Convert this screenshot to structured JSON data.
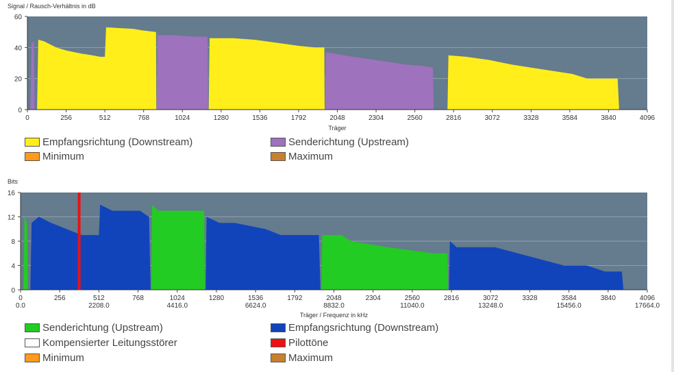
{
  "colors": {
    "plot_bg": "#657b8e",
    "grid": "#8fa0ae",
    "downstream_snr": "#ffee1a",
    "upstream_snr": "#9e72bd",
    "minimum": "#ff9a1a",
    "maximum": "#c8802e",
    "upstream_bits": "#22cc22",
    "downstream_bits": "#1144bb",
    "compensated": "#ffffff",
    "pilot": "#ee1111"
  },
  "chart_data": [
    {
      "type": "area",
      "title": "",
      "ylabel": "Signal / Rausch-Verhältnis in dB",
      "xlabel": "Träger",
      "xlim": [
        0,
        4096
      ],
      "ylim": [
        0,
        60
      ],
      "yticks": [
        "0",
        "20",
        "40",
        "60"
      ],
      "xticks": [
        "0",
        "256",
        "512",
        "768",
        "1024",
        "1280",
        "1536",
        "1792",
        "2048",
        "2304",
        "2560",
        "2816",
        "3072",
        "3328",
        "3584",
        "3840",
        "4096"
      ],
      "grid": true,
      "legend_position": "bottom",
      "legend": [
        "Empfangsrichtung (Downstream)",
        "Senderichtung (Upstream)",
        "Minimum",
        "Maximum"
      ],
      "series": [
        {
          "name": "Senderichtung (Upstream)",
          "segments": [
            [
              [
                20,
                0
              ],
              [
                28,
                43
              ],
              [
                42,
                44
              ],
              [
                48,
                0
              ]
            ],
            [
              [
                854,
                0
              ],
              [
                860,
                48
              ],
              [
                950,
                48
              ],
              [
                1100,
                47
              ],
              [
                1190,
                47
              ],
              [
                1195,
                0
              ]
            ],
            [
              [
                1966,
                0
              ],
              [
                1972,
                37
              ],
              [
                2150,
                34
              ],
              [
                2300,
                32
              ],
              [
                2500,
                29
              ],
              [
                2620,
                28
              ],
              [
                2680,
                27
              ],
              [
                2685,
                0
              ]
            ]
          ]
        },
        {
          "name": "Empfangsrichtung (Downstream)",
          "segments": [
            [
              [
                64,
                0
              ],
              [
                72,
                45
              ],
              [
                110,
                44
              ],
              [
                190,
                40
              ],
              [
                260,
                38
              ],
              [
                360,
                36
              ],
              [
                430,
                35
              ],
              [
                480,
                34
              ],
              [
                512,
                34
              ],
              [
                520,
                53
              ],
              [
                700,
                52
              ],
              [
                760,
                51
              ],
              [
                850,
                50
              ],
              [
                852,
                0
              ]
            ],
            [
              [
                1198,
                0
              ],
              [
                1204,
                46
              ],
              [
                1360,
                46
              ],
              [
                1500,
                45
              ],
              [
                1650,
                43
              ],
              [
                1800,
                41
              ],
              [
                1900,
                40
              ],
              [
                1962,
                40
              ],
              [
                1964,
                0
              ]
            ],
            [
              [
                2776,
                0
              ],
              [
                2782,
                35
              ],
              [
                2900,
                34
              ],
              [
                3050,
                32
              ],
              [
                3200,
                29
              ],
              [
                3400,
                26
              ],
              [
                3600,
                23
              ],
              [
                3700,
                20
              ],
              [
                3900,
                20
              ],
              [
                3910,
                0
              ]
            ]
          ]
        }
      ]
    },
    {
      "type": "area",
      "title": "",
      "ylabel": "Bits",
      "xlabel": "Träger / Frequenz in kHz",
      "xlim": [
        0,
        4096
      ],
      "ylim": [
        0,
        16
      ],
      "yticks": [
        "0",
        "4",
        "8",
        "12",
        "16"
      ],
      "xticks": [
        "0",
        "256",
        "512",
        "768",
        "1024",
        "1280",
        "1536",
        "1792",
        "2048",
        "2304",
        "2560",
        "2816",
        "3072",
        "3328",
        "3584",
        "3840",
        "4096"
      ],
      "freq_labels": [
        {
          "x": 0,
          "label": "0.0"
        },
        {
          "x": 512,
          "label": "2208.0"
        },
        {
          "x": 1024,
          "label": "4416.0"
        },
        {
          "x": 1536,
          "label": "6624.0"
        },
        {
          "x": 2048,
          "label": "8832.0"
        },
        {
          "x": 2560,
          "label": "11040.0"
        },
        {
          "x": 3072,
          "label": "13248.0"
        },
        {
          "x": 3584,
          "label": "15456.0"
        },
        {
          "x": 4096,
          "label": "17664.0"
        }
      ],
      "grid": true,
      "legend_position": "bottom",
      "legend": [
        "Senderichtung (Upstream)",
        "Empfangsrichtung (Downstream)",
        "Kompensierter Leitungsstörer",
        "Pilottöne",
        "Minimum",
        "Maximum"
      ],
      "pilot_tone_carrier": 383,
      "series": [
        {
          "name": "Senderichtung (Upstream)",
          "segments": [
            [
              [
                20,
                0
              ],
              [
                26,
                12
              ],
              [
                42,
                11
              ],
              [
                48,
                0
              ]
            ],
            [
              [
                854,
                0
              ],
              [
                860,
                14
              ],
              [
                900,
                13
              ],
              [
                1200,
                13
              ],
              [
                1205,
                0
              ]
            ],
            [
              [
                1966,
                0
              ],
              [
                1972,
                9
              ],
              [
                2100,
                9
              ],
              [
                2160,
                8
              ],
              [
                2400,
                7
              ],
              [
                2700,
                6
              ],
              [
                2790,
                6
              ],
              [
                2795,
                0
              ]
            ]
          ]
        },
        {
          "name": "Empfangsrichtung (Downstream)",
          "segments": [
            [
              [
                64,
                0
              ],
              [
                72,
                11
              ],
              [
                120,
                12
              ],
              [
                200,
                11
              ],
              [
                300,
                10
              ],
              [
                400,
                9
              ],
              [
                512,
                9
              ],
              [
                520,
                14
              ],
              [
                600,
                13
              ],
              [
                780,
                13
              ],
              [
                840,
                12
              ],
              [
                850,
                0
              ]
            ],
            [
              [
                1210,
                0
              ],
              [
                1216,
                12
              ],
              [
                1300,
                11
              ],
              [
                1400,
                11
              ],
              [
                1600,
                10
              ],
              [
                1700,
                9
              ],
              [
                1950,
                9
              ],
              [
                1960,
                0
              ]
            ],
            [
              [
                2800,
                0
              ],
              [
                2806,
                8
              ],
              [
                2850,
                7
              ],
              [
                3100,
                7
              ],
              [
                3250,
                6
              ],
              [
                3400,
                5
              ],
              [
                3550,
                4
              ],
              [
                3700,
                4
              ],
              [
                3820,
                3
              ],
              [
                3930,
                3
              ],
              [
                3940,
                0
              ]
            ]
          ]
        },
        {
          "name": "Pilottöne",
          "markers": [
            383
          ]
        }
      ]
    }
  ]
}
